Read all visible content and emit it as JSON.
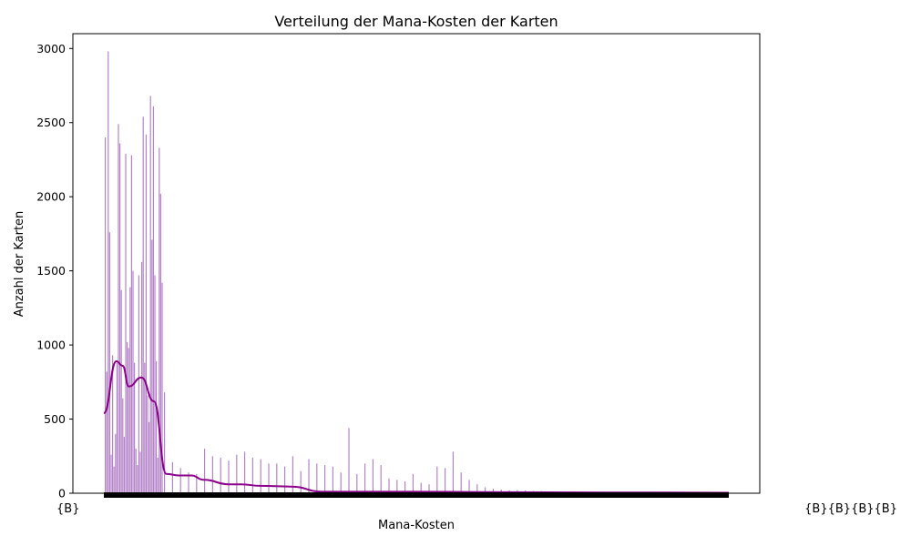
{
  "chart_data": {
    "type": "bar",
    "title": "Verteilung der Mana-Kosten der Karten",
    "xlabel": "Mana-Kosten",
    "ylabel": "Anzahl der Karten",
    "ylim": [
      0,
      3100
    ],
    "yticks": [
      "0",
      "500",
      "1000",
      "1500",
      "2000",
      "2500",
      "3000"
    ],
    "xtick_first_label": "{B}",
    "xtick_last_label": "{B}{B}{B}{B}",
    "bar_color": "#9b59b6",
    "kde_color": "#8b008b",
    "grid": false,
    "legend": "none",
    "series": [
      {
        "values": [
          2400,
          820,
          2980,
          1760,
          260,
          930,
          180,
          400,
          880,
          2490,
          2360,
          1370,
          640,
          380,
          2290,
          1020,
          980,
          1390,
          2280,
          1500,
          880,
          300,
          190,
          1470,
          280,
          1560,
          2540,
          880,
          2420,
          660,
          480,
          2680,
          1710,
          2610,
          1470,
          890,
          240,
          2330,
          2020,
          1420,
          680,
          210,
          170,
          140,
          130,
          300,
          250,
          240,
          220,
          260,
          280,
          240,
          230,
          200,
          200,
          180,
          250,
          150,
          230,
          200,
          190,
          180,
          140,
          440,
          130,
          200,
          230,
          190,
          100,
          90,
          80,
          130,
          70,
          60,
          180,
          170,
          280,
          140,
          90,
          60,
          40,
          30,
          25,
          20,
          20,
          18,
          15,
          15,
          12,
          12,
          10,
          10,
          10,
          9,
          9,
          8,
          8,
          7,
          7,
          6,
          6,
          5,
          5,
          5,
          4,
          4,
          4,
          3,
          3,
          3
        ]
      }
    ],
    "kde": {
      "x": [
        0,
        0.02,
        0.03,
        0.04,
        0.06,
        0.08,
        0.1,
        0.12,
        0.14,
        0.16,
        0.2,
        0.22,
        0.25,
        0.3,
        0.35,
        0.4,
        0.45,
        0.5,
        0.6,
        0.7,
        0.8,
        0.9,
        1.0
      ],
      "y": [
        540,
        890,
        860,
        720,
        780,
        620,
        130,
        120,
        120,
        90,
        60,
        60,
        50,
        45,
        10,
        10,
        10,
        10,
        8,
        6,
        5,
        4,
        3
      ]
    }
  }
}
